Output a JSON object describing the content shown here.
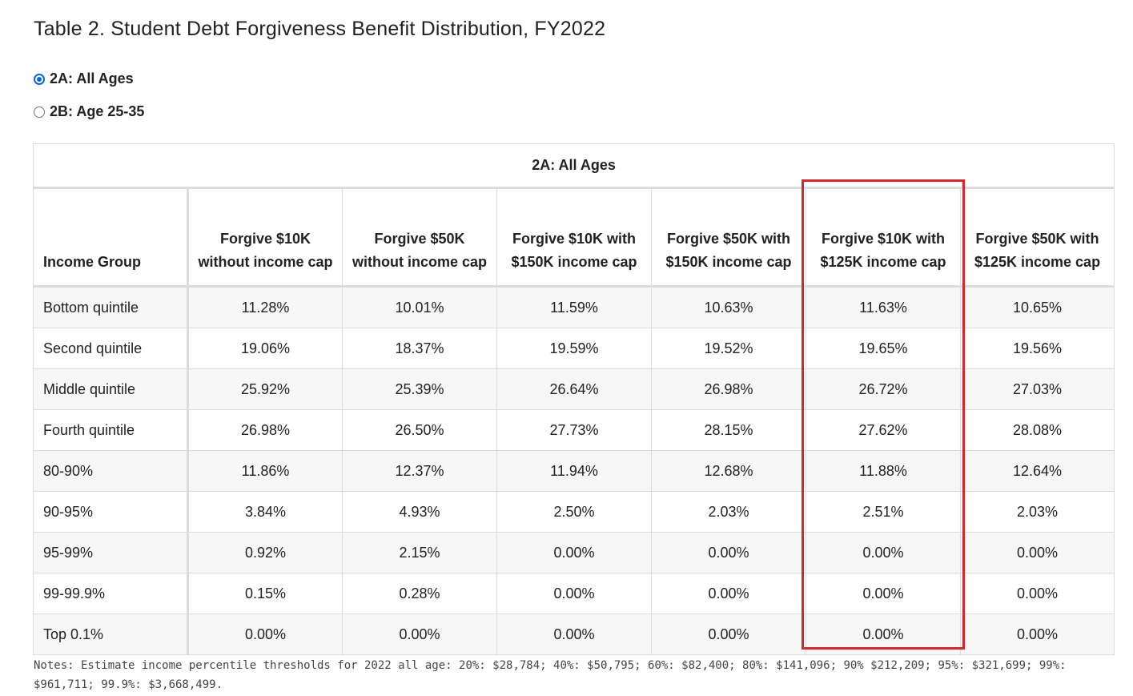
{
  "title": "Table 2. Student Debt Forgiveness Benefit Distribution, FY2022",
  "options": [
    {
      "label": "2A: All Ages",
      "selected": true
    },
    {
      "label": "2B: Age 25-35",
      "selected": false
    }
  ],
  "table": {
    "caption": "2A: All Ages",
    "headers": [
      "Income Group",
      "Forgive $10K without income cap",
      "Forgive $50K without income cap",
      "Forgive $10K with $150K income cap",
      "Forgive $50K with $150K income cap",
      "Forgive $10K with $125K income cap",
      "Forgive $50K with $125K income cap"
    ],
    "rows": [
      [
        "Bottom quintile",
        "11.28%",
        "10.01%",
        "11.59%",
        "10.63%",
        "11.63%",
        "10.65%"
      ],
      [
        "Second quintile",
        "19.06%",
        "18.37%",
        "19.59%",
        "19.52%",
        "19.65%",
        "19.56%"
      ],
      [
        "Middle quintile",
        "25.92%",
        "25.39%",
        "26.64%",
        "26.98%",
        "26.72%",
        "27.03%"
      ],
      [
        "Fourth quintile",
        "26.98%",
        "26.50%",
        "27.73%",
        "28.15%",
        "27.62%",
        "28.08%"
      ],
      [
        "80-90%",
        "11.86%",
        "12.37%",
        "11.94%",
        "12.68%",
        "11.88%",
        "12.64%"
      ],
      [
        "90-95%",
        "3.84%",
        "4.93%",
        "2.50%",
        "2.03%",
        "2.51%",
        "2.03%"
      ],
      [
        "95-99%",
        "0.92%",
        "2.15%",
        "0.00%",
        "0.00%",
        "0.00%",
        "0.00%"
      ],
      [
        "99-99.9%",
        "0.15%",
        "0.28%",
        "0.00%",
        "0.00%",
        "0.00%",
        "0.00%"
      ],
      [
        "Top 0.1%",
        "0.00%",
        "0.00%",
        "0.00%",
        "0.00%",
        "0.00%",
        "0.00%"
      ]
    ]
  },
  "notes": "Notes: Estimate income percentile thresholds for 2022 all age: 20%: $28,784; 40%: $50,795; 60%: $82,400; 80%: $141,096; 90% $212,209; 95%: $321,699; 99%: $961,711; 99.9%: $3,668,499.",
  "colors": {
    "highlight": "#d8262f",
    "radio_accent": "#0a66d6"
  }
}
